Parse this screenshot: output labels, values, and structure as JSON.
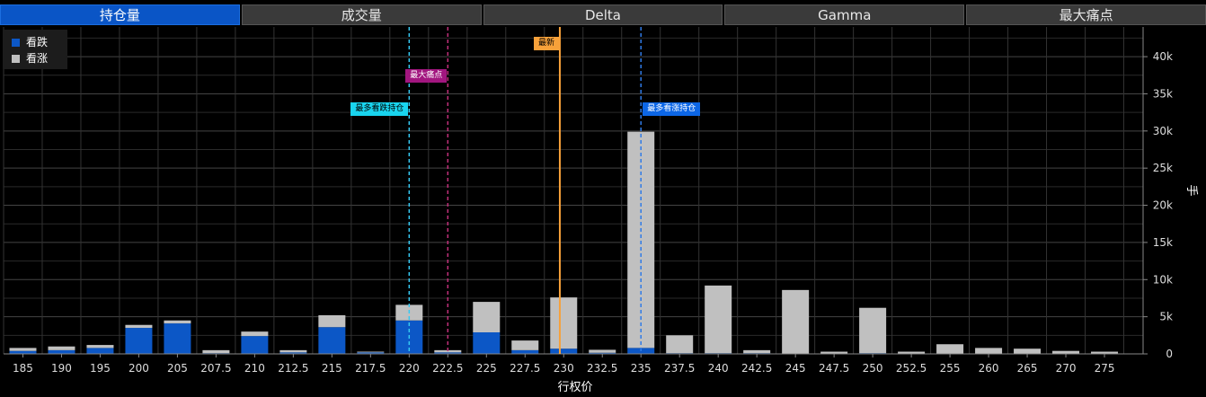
{
  "tabs": [
    "持仓量",
    "成交量",
    "Delta",
    "Gamma",
    "最大痛点"
  ],
  "active_tab": 0,
  "legend": [
    {
      "label": "看跌",
      "color": "#0c57c6"
    },
    {
      "label": "看涨",
      "color": "#c0c0c0"
    }
  ],
  "markers": [
    {
      "label": "最多看跌持仓",
      "strike": 220,
      "line_color": "#35c8f2",
      "bg": "#19d4ee",
      "fg": "#000000",
      "dashed": true
    },
    {
      "label": "最大痛点",
      "strike": 222.5,
      "line_color": "#c0307a",
      "bg": "#a2167f",
      "fg": "#ffffff",
      "dashed": true
    },
    {
      "label": "最新",
      "strike": 229.75,
      "line_color": "#f7a13a",
      "bg": "#f7a13a",
      "fg": "#000000",
      "dashed": false
    },
    {
      "label": "最多看涨持仓",
      "strike": 235,
      "line_color": "#2f7ae6",
      "bg": "#0c66e6",
      "fg": "#ffffff",
      "dashed": true
    }
  ],
  "chart_data": {
    "type": "bar",
    "stacked": true,
    "xlabel": "行权价",
    "ylabel": "手",
    "ylim": [
      0,
      44000
    ],
    "y_ticks": [
      0,
      5000,
      10000,
      15000,
      20000,
      25000,
      30000,
      35000,
      40000
    ],
    "y_tick_labels": [
      "0",
      "5k",
      "10k",
      "15k",
      "20k",
      "25k",
      "30k",
      "35k",
      "40k"
    ],
    "categories": [
      "185",
      "190",
      "195",
      "200",
      "205",
      "207.5",
      "210",
      "212.5",
      "215",
      "217.5",
      "220",
      "222.5",
      "225",
      "227.5",
      "230",
      "232.5",
      "235",
      "237.5",
      "240",
      "242.5",
      "245",
      "247.5",
      "250",
      "252.5",
      "255",
      "260",
      "265",
      "270",
      "275"
    ],
    "series": [
      {
        "name": "看跌",
        "color": "#0c57c6",
        "values": [
          400,
          500,
          800,
          3500,
          4100,
          100,
          2400,
          200,
          3600,
          200,
          4500,
          200,
          2900,
          500,
          700,
          150,
          800,
          100,
          100,
          100,
          0,
          0,
          100,
          0,
          0,
          0,
          0,
          0,
          0
        ]
      },
      {
        "name": "看涨",
        "color": "#c0c0c0",
        "values": [
          400,
          500,
          400,
          400,
          400,
          400,
          600,
          300,
          1600,
          100,
          2100,
          300,
          4100,
          1300,
          6900,
          400,
          29100,
          2400,
          9100,
          400,
          8600,
          300,
          6100,
          300,
          1300,
          800,
          700,
          400,
          300
        ]
      }
    ],
    "grid": true,
    "y_axis_position": "right"
  }
}
